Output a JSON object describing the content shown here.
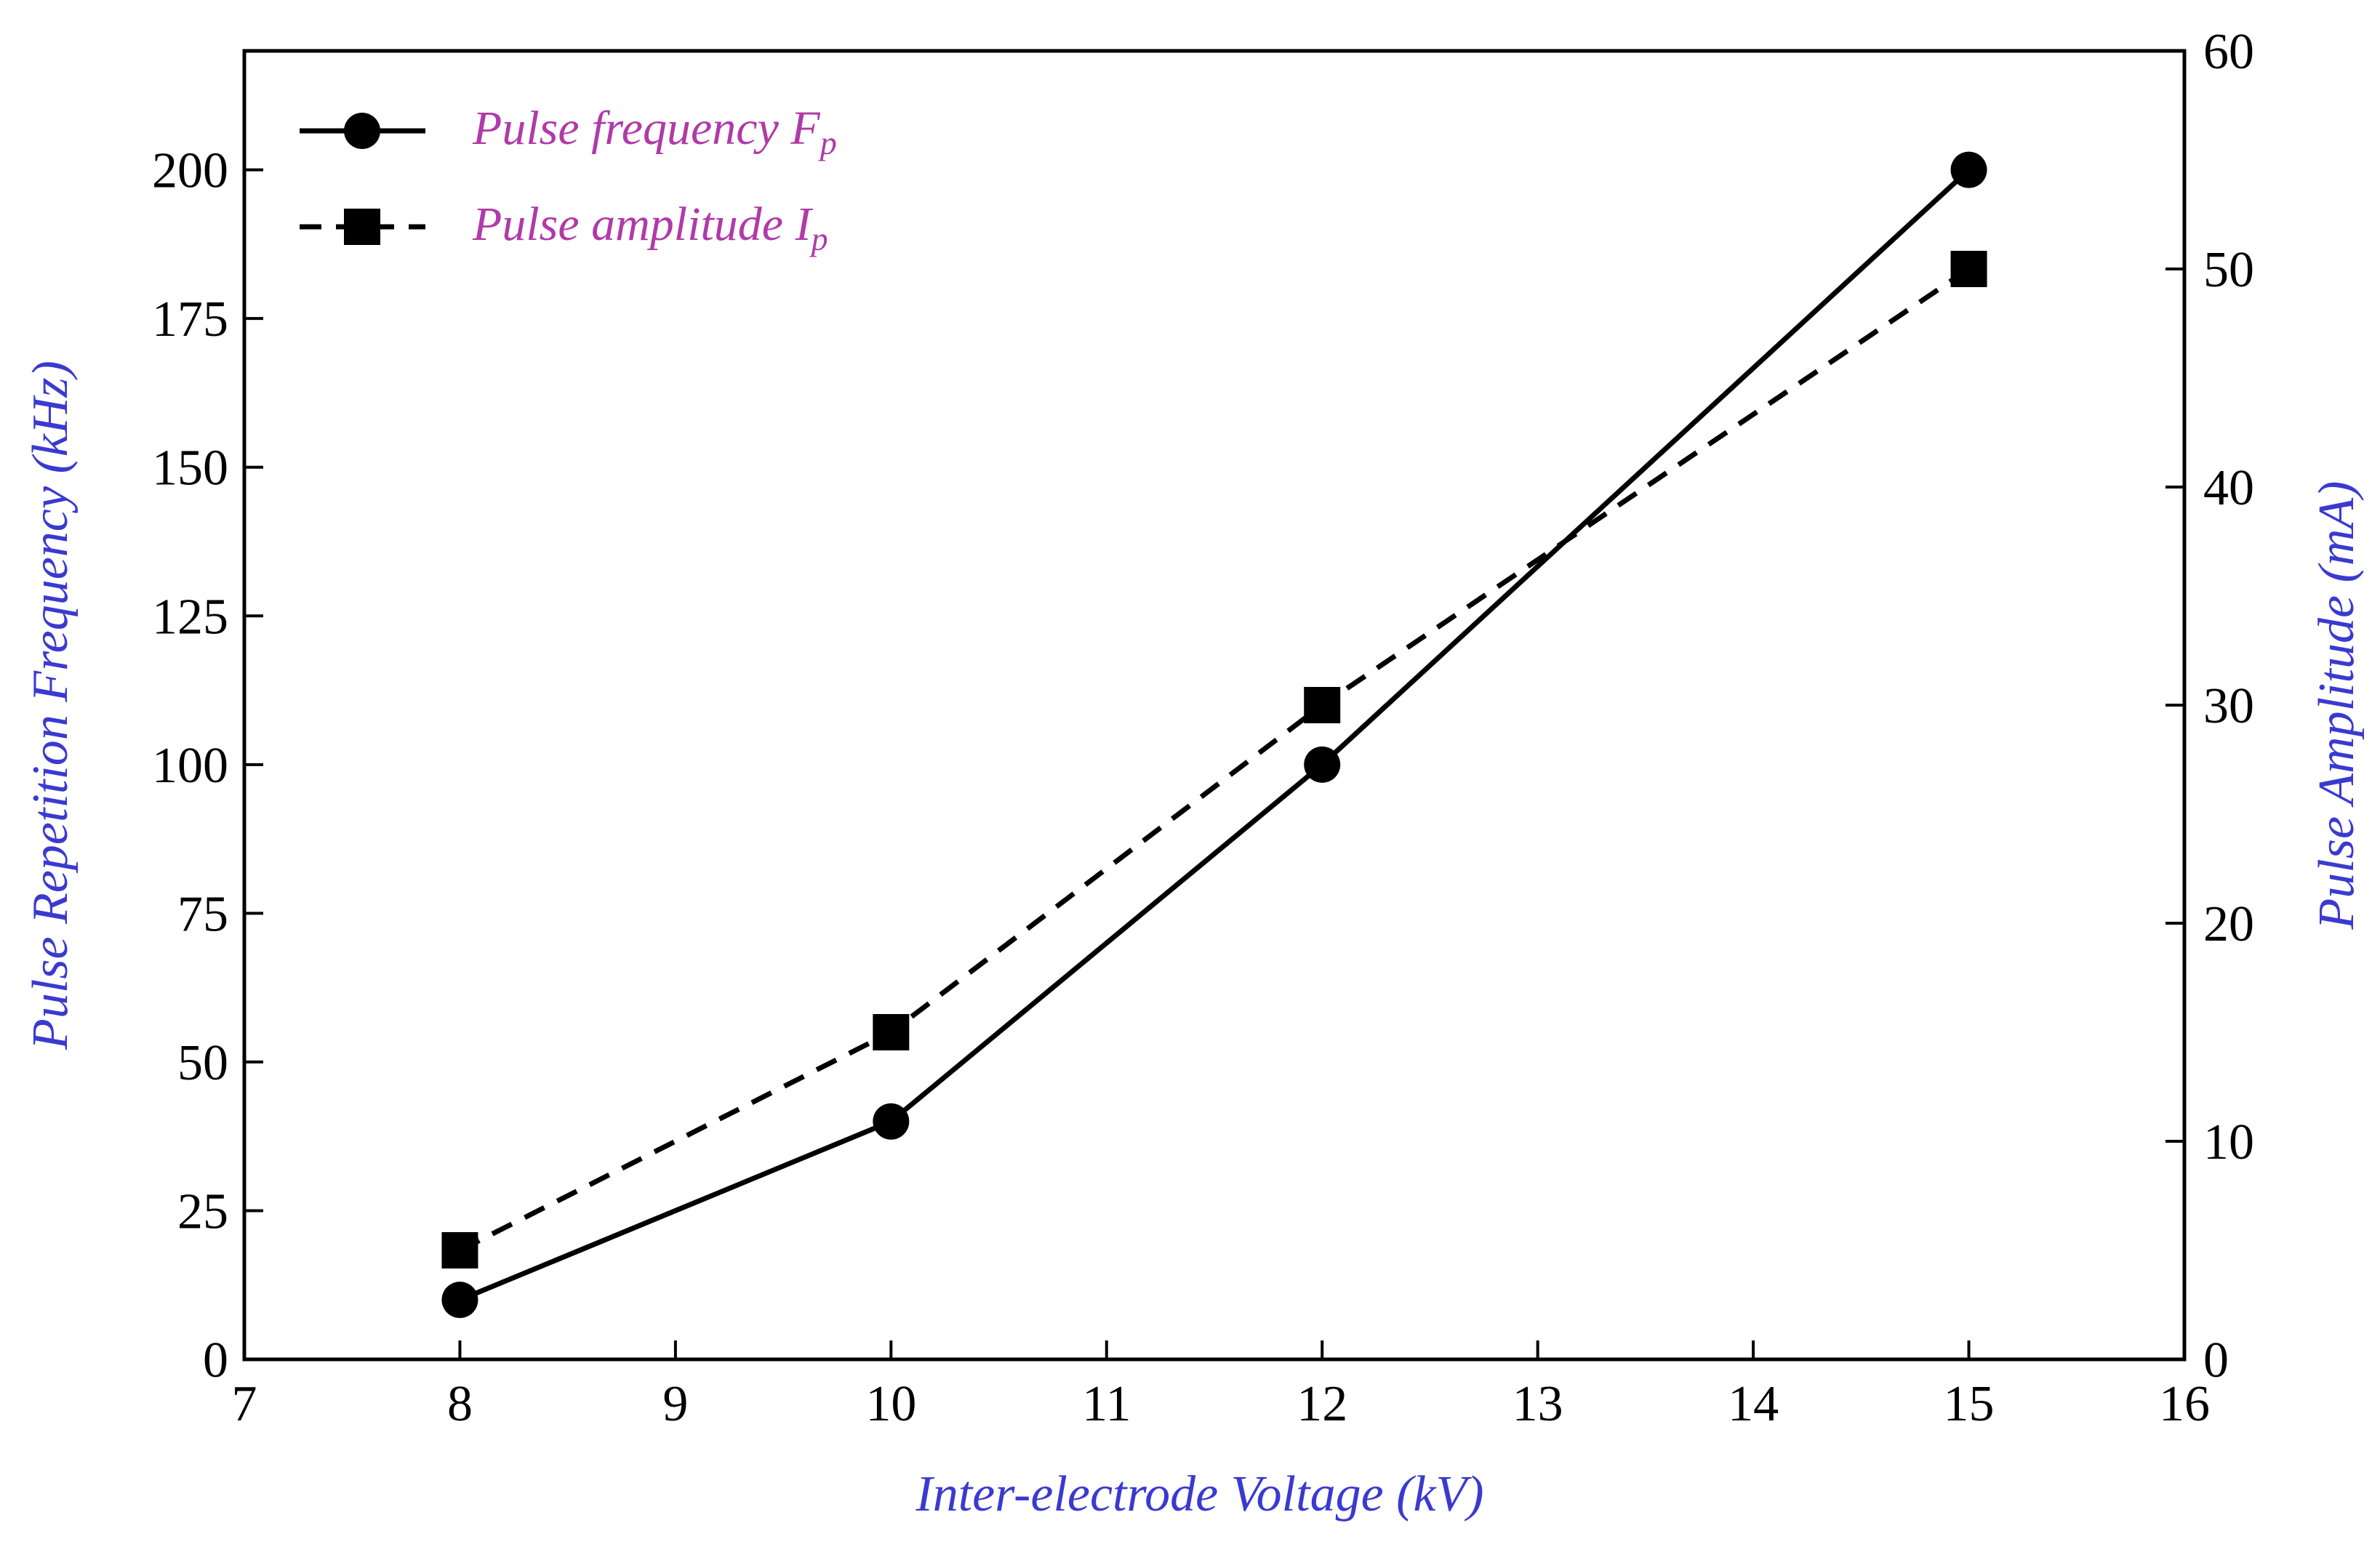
{
  "chart_data": {
    "type": "line",
    "xlabel": "Inter-electrode Voltage (kV)",
    "ylabel_left": "Pulse Repetition Frequency (kHz)",
    "ylabel_right": "Pulse Amplitude (mA)",
    "xlim": [
      7,
      16
    ],
    "ylim_left": [
      0,
      220
    ],
    "ylim_right": [
      0,
      60
    ],
    "x_ticks": [
      7,
      8,
      9,
      10,
      11,
      12,
      13,
      14,
      15,
      16
    ],
    "y_ticks_left": [
      0,
      25,
      50,
      75,
      100,
      125,
      150,
      175,
      200
    ],
    "y_ticks_right": [
      0,
      10,
      20,
      30,
      40,
      50,
      60
    ],
    "grid": false,
    "legend_position": "top-left",
    "series": [
      {
        "name": "Pulse frequency F",
        "name_subscript": "p",
        "axis": "left",
        "line_style": "solid",
        "marker": "circle",
        "x": [
          8,
          10,
          12,
          15
        ],
        "y": [
          10,
          40,
          100,
          200
        ]
      },
      {
        "name": "Pulse amplitude I",
        "name_subscript": "p",
        "axis": "right",
        "line_style": "dashed",
        "marker": "square",
        "x": [
          8,
          10,
          12,
          15
        ],
        "y": [
          5,
          15,
          30,
          50
        ]
      }
    ],
    "colors": {
      "axis_title": "#3a3ad0",
      "legend_text": "#b03aa8",
      "series": "#000000"
    }
  }
}
